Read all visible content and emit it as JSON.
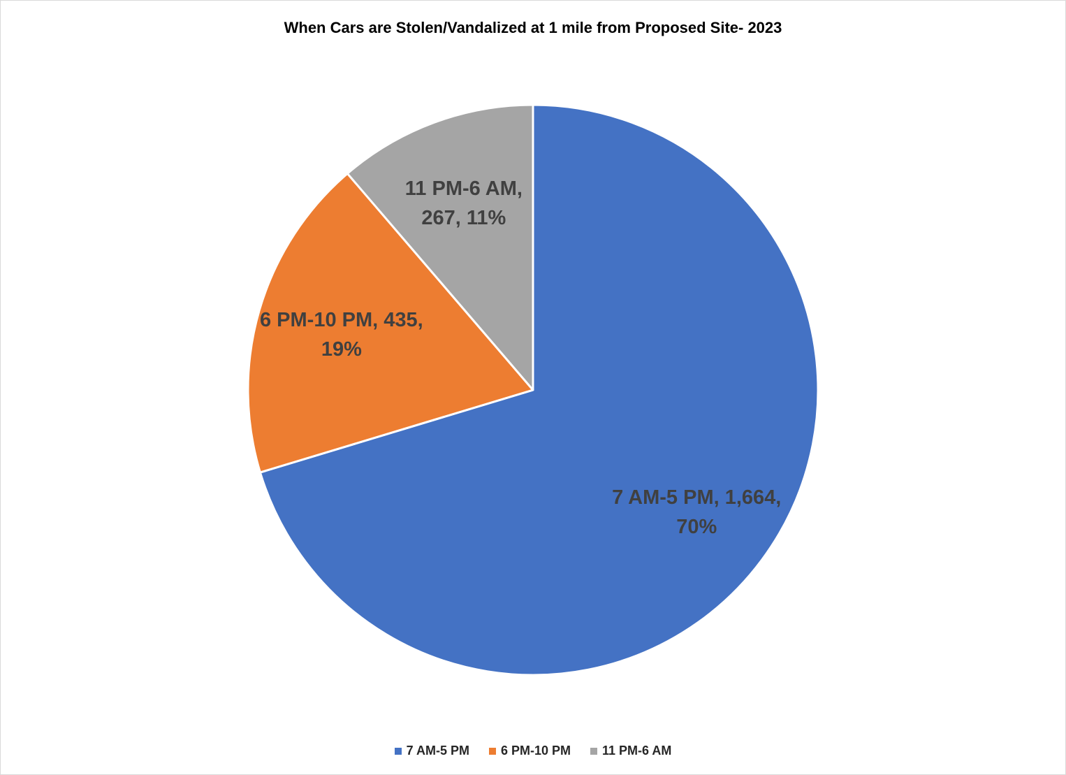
{
  "chart_data": {
    "type": "pie",
    "title": "When Cars are Stolen/Vandalized at 1 mile from Proposed Site- 2023",
    "categories": [
      "7 AM-5 PM",
      "6 PM-10 PM",
      "11 PM-6 AM"
    ],
    "values": [
      1664,
      435,
      267
    ],
    "percentages": [
      70,
      19,
      11
    ],
    "data_labels": [
      [
        "7 AM-5 PM, 1,664,",
        "70%"
      ],
      [
        "6 PM-10 PM, 435,",
        "19%"
      ],
      [
        "11 PM-6 AM,",
        "267, 11%"
      ]
    ],
    "colors": [
      "#4472C4",
      "#ED7D31",
      "#A5A5A5"
    ],
    "legend_position": "bottom"
  }
}
